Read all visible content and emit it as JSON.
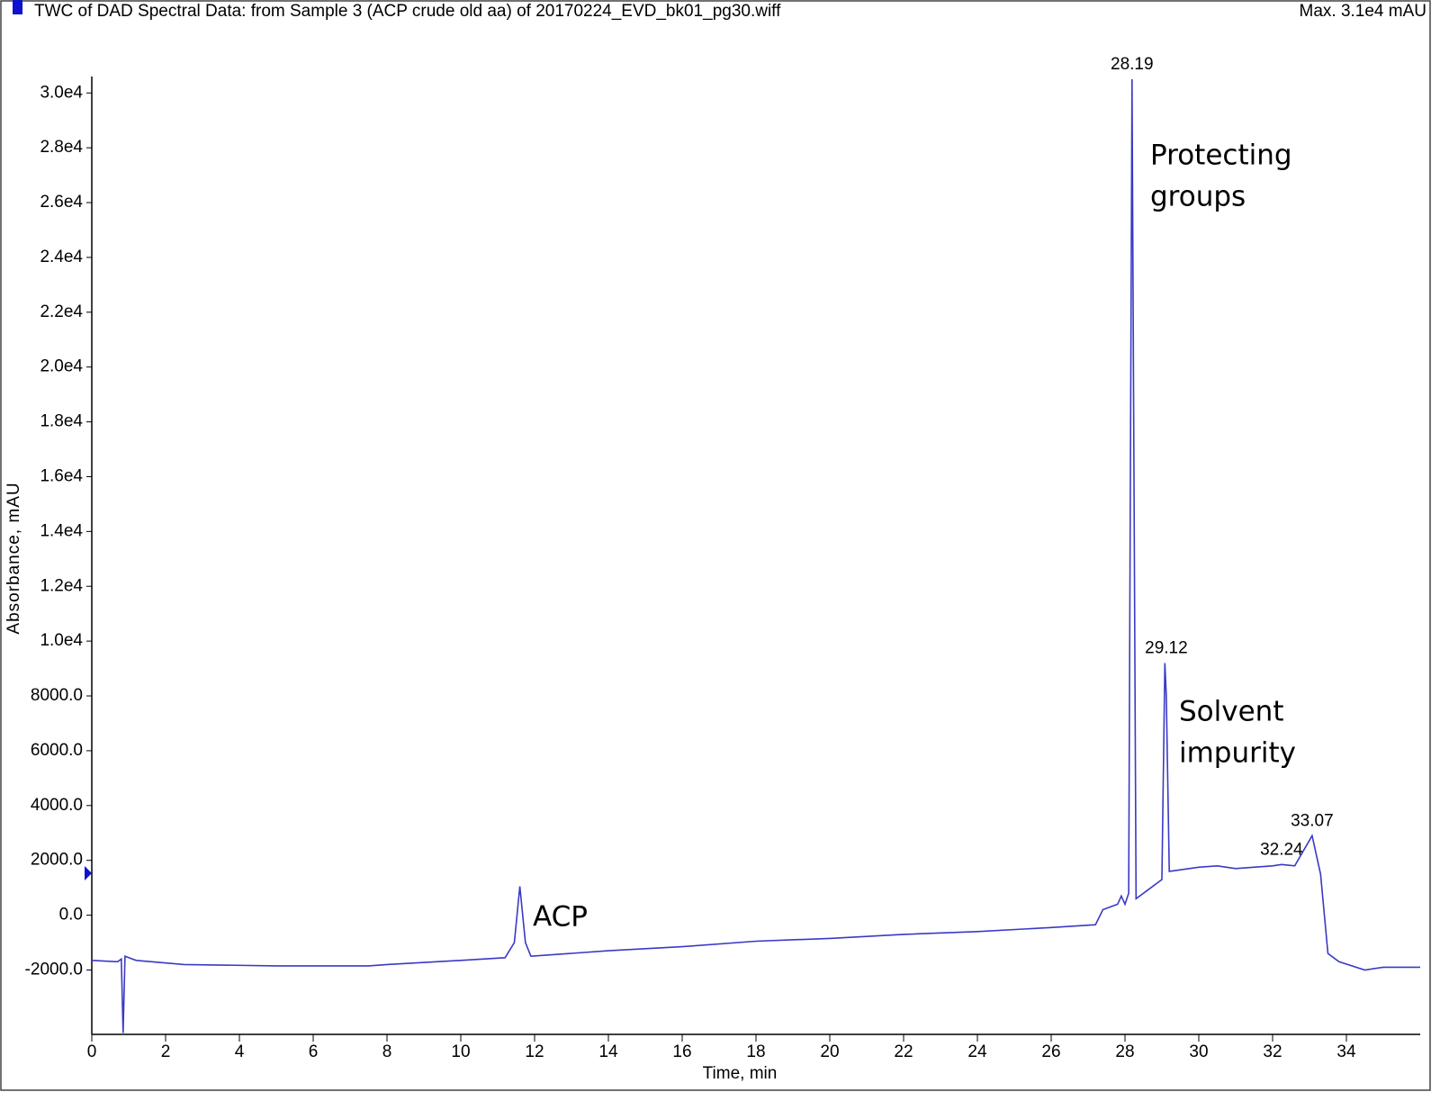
{
  "chart_data": {
    "type": "line",
    "title": "TWC of DAD Spectral Data: from Sample 3 (ACP crude old aa) of 20170224_EVD_bk01_pg30.wiff",
    "subtitle": "Max. 3.1e4 mAU",
    "x_label": "Time, min",
    "y_label": "Absorbance, mAU",
    "color": "#3a3ac4",
    "x": [
      0,
      0.7,
      0.8,
      0.85,
      0.9,
      1.0,
      1.2,
      2.5,
      5,
      7.5,
      8,
      10,
      11.2,
      11.45,
      11.6,
      11.75,
      11.9,
      14,
      16,
      18,
      20,
      22,
      24,
      26,
      27.2,
      27.4,
      27.8,
      27.9,
      28.0,
      28.1,
      28.19,
      28.3,
      28.6,
      29.0,
      29.08,
      29.12,
      29.2,
      30,
      30.5,
      31,
      32,
      32.24,
      32.6,
      33.07,
      33.3,
      33.5,
      33.8,
      34.5,
      35,
      36
    ],
    "values": [
      -1650,
      -1700,
      -1600,
      -4300,
      -1500,
      -1550,
      -1650,
      -1800,
      -1850,
      -1850,
      -1800,
      -1650,
      -1550,
      -1000,
      1050,
      -1000,
      -1500,
      -1300,
      -1150,
      -950,
      -850,
      -700,
      -600,
      -450,
      -350,
      200,
      400,
      700,
      400,
      800,
      30500,
      600,
      900,
      1300,
      9200,
      8000,
      1600,
      1750,
      1800,
      1700,
      1800,
      1850,
      1800,
      2900,
      1500,
      -1400,
      -1700,
      -2000,
      -1900,
      -1900
    ],
    "peak_labels": [
      28.19,
      29.12,
      32.24,
      33.07
    ],
    "annotations": [
      [
        "ACP"
      ],
      [
        "Protecting",
        "groups"
      ],
      [
        "Solvent",
        "impurity"
      ]
    ],
    "xlim": [
      0,
      36
    ],
    "xticks": [
      0,
      2,
      4,
      6,
      8,
      10,
      12,
      14,
      16,
      18,
      20,
      22,
      24,
      26,
      28,
      30,
      32,
      34
    ],
    "ylim": [
      -4350,
      30600
    ],
    "yticks": [
      {
        "value": -2000,
        "label": "-2000.0"
      },
      {
        "value": 0,
        "label": "0.0"
      },
      {
        "value": 2000,
        "label": "2000.0"
      },
      {
        "value": 4000,
        "label": "4000.0"
      },
      {
        "value": 6000,
        "label": "6000.0"
      },
      {
        "value": 8000,
        "label": "8000.0"
      },
      {
        "value": 10000,
        "label": "1.0e4"
      },
      {
        "value": 12000,
        "label": "1.2e4"
      },
      {
        "value": 14000,
        "label": "1.4e4"
      },
      {
        "value": 16000,
        "label": "1.6e4"
      },
      {
        "value": 18000,
        "label": "1.8e4"
      },
      {
        "value": 20000,
        "label": "2.0e4"
      },
      {
        "value": 22000,
        "label": "2.2e4"
      },
      {
        "value": 24000,
        "label": "2.4e4"
      },
      {
        "value": 26000,
        "label": "2.6e4"
      },
      {
        "value": 28000,
        "label": "2.8e4"
      },
      {
        "value": 30000,
        "label": "3.0e4"
      }
    ]
  }
}
